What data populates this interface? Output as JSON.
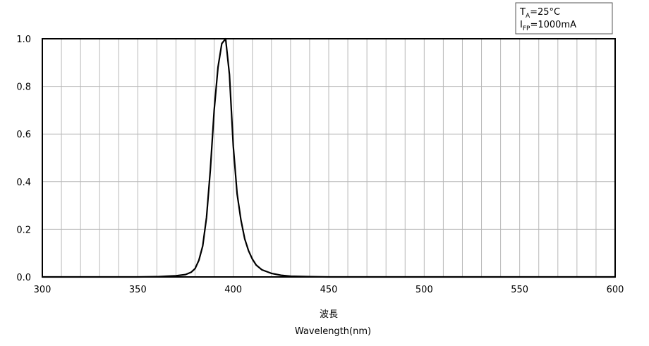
{
  "chart_data": {
    "type": "line",
    "x_label_1": "波長",
    "x_label_2": "Wavelength(nm)",
    "annotation": [
      {
        "main": "T",
        "sub": "A",
        "rest": "=25°C"
      },
      {
        "main": "I",
        "sub": "FP",
        "rest": "=1000mA"
      }
    ],
    "x": [
      300,
      350,
      360,
      365,
      370,
      375,
      378,
      380,
      382,
      384,
      386,
      388,
      390,
      392,
      394,
      396,
      398,
      400,
      402,
      404,
      406,
      408,
      410,
      412,
      415,
      420,
      425,
      430,
      440,
      450,
      600
    ],
    "series": [
      {
        "color": "#000000",
        "values": [
          0,
          0,
          0.001,
          0.003,
          0.005,
          0.01,
          0.02,
          0.035,
          0.07,
          0.13,
          0.25,
          0.45,
          0.7,
          0.88,
          0.98,
          1.0,
          0.85,
          0.55,
          0.35,
          0.24,
          0.16,
          0.11,
          0.075,
          0.05,
          0.03,
          0.015,
          0.007,
          0.003,
          0.001,
          0,
          0
        ]
      }
    ],
    "xlim": [
      300,
      600
    ],
    "ylim": [
      0,
      1
    ],
    "xticks": [
      300,
      350,
      400,
      450,
      500,
      550,
      600
    ],
    "x_minor_ticks": [
      310,
      320,
      330,
      340,
      360,
      370,
      380,
      390,
      410,
      420,
      430,
      440,
      460,
      470,
      480,
      490,
      510,
      520,
      530,
      540,
      560,
      570,
      580,
      590
    ],
    "yticks": [
      {
        "value": 0,
        "label": "0.0"
      },
      {
        "value": 0.2,
        "label": "0.2"
      },
      {
        "value": 0.4,
        "label": "0.4"
      },
      {
        "value": 0.6,
        "label": "0.6"
      },
      {
        "value": 0.8,
        "label": "0.8"
      },
      {
        "value": 1,
        "label": "1.0"
      }
    ],
    "grid": true
  }
}
